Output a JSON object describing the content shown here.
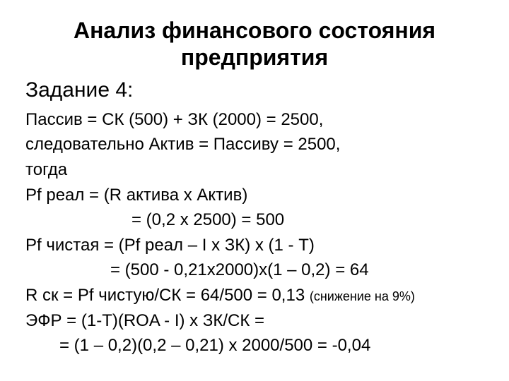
{
  "colors": {
    "background": "#ffffff",
    "text": "#000000"
  },
  "title": "Анализ финансового состояния предприятия",
  "subtitle": "Задание 4:",
  "lines": {
    "l1": "Пассив = СК (500) + ЗК (2000) = 2500,",
    "l2": "следовательно Актив = Пассиву = 2500,",
    "l3": "тогда",
    "l4": "Pf реал = (R актива х Актив)",
    "l5": "= (0,2 х 2500) = 500",
    "l6": "Pf чистая = (Pf реал – I х ЗК) х (1 - Т)",
    "l7": "= (500 - 0,21х2000)х(1 – 0,2)  = 64",
    "l8a": "R ск = Pf чистую/СК = 64/500 = 0,13 ",
    "l8b": "(снижение на 9%)",
    "l9": "ЭФР = (1-Т)(ROA - I) х ЗК/СК =",
    "l10": "= (1 – 0,2)(0,2 – 0,21) х 2000/500 = -0,04"
  },
  "typography": {
    "title_fontsize": 32,
    "subtitle_fontsize": 30,
    "body_fontsize": 24,
    "small_fontsize": 18,
    "title_weight": "bold"
  }
}
